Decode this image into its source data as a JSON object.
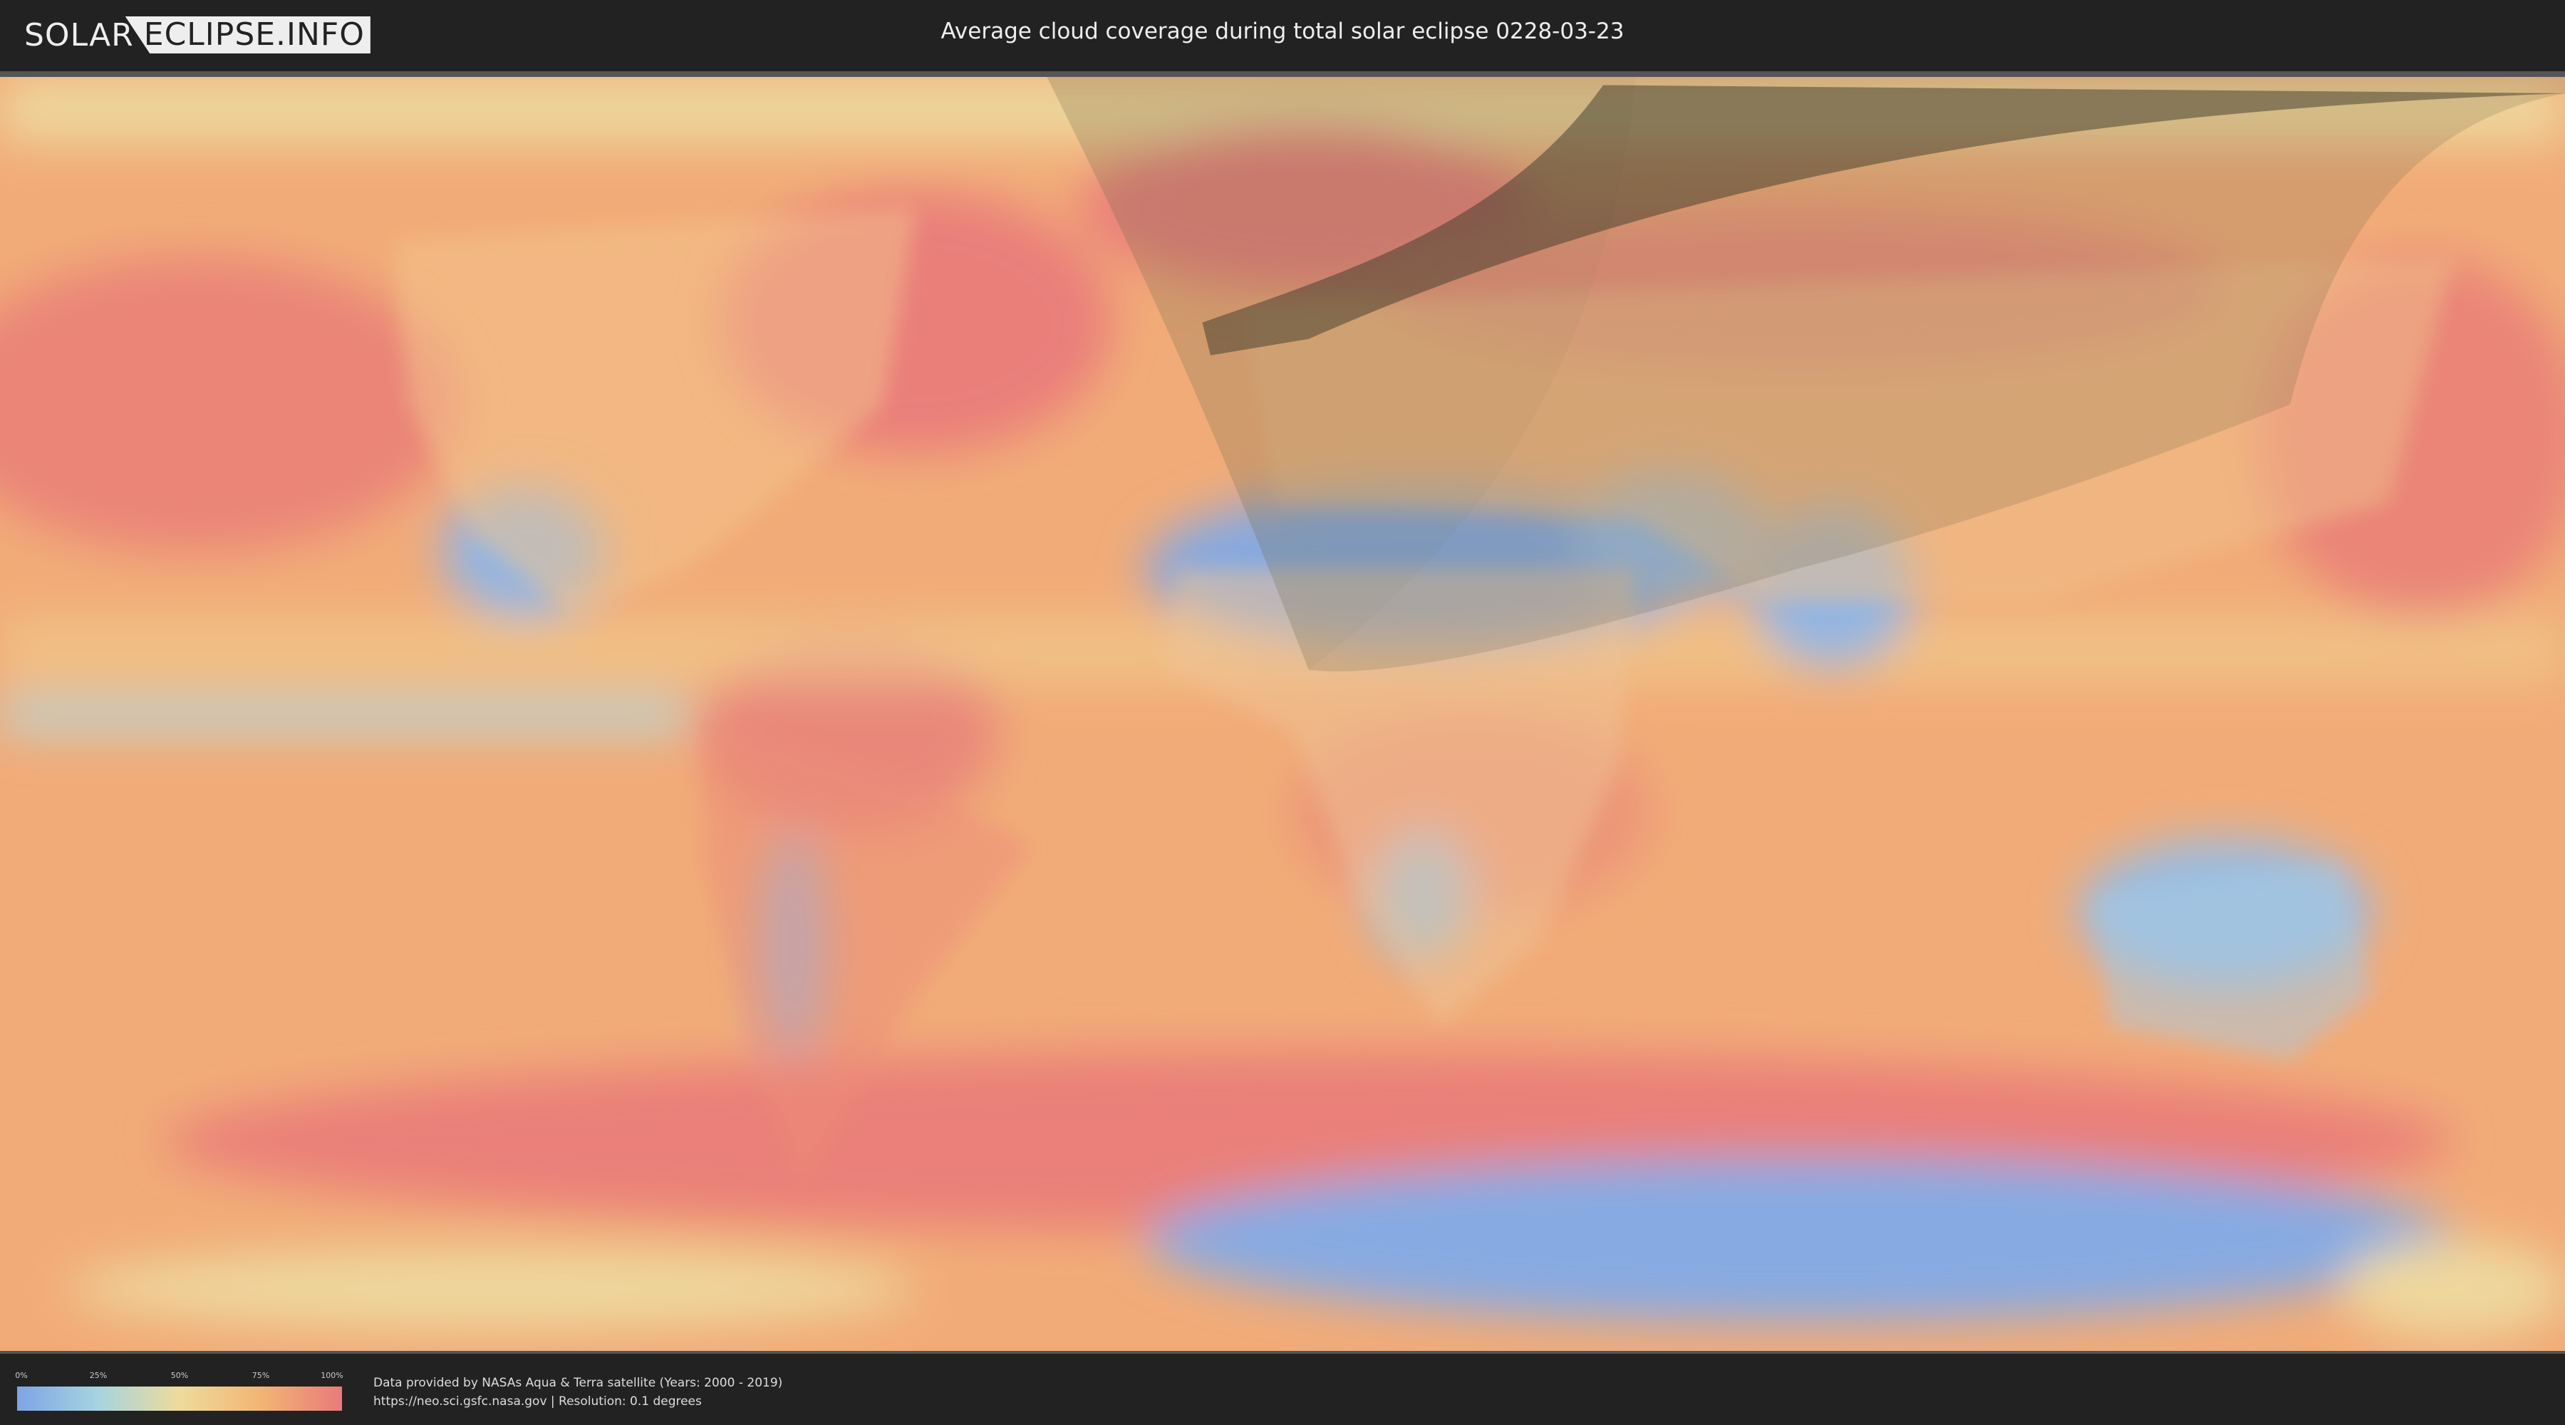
{
  "header": {
    "logo_left": "SOLAR",
    "logo_right": "ECLIPSE.INFO",
    "title": "Average cloud coverage during total solar eclipse 0228-03-23"
  },
  "map": {
    "type": "cloud-coverage world map with eclipse path overlay",
    "eclipse_date": "0228-03-23"
  },
  "legend": {
    "ticks": [
      "0%",
      "25%",
      "50%",
      "75%",
      "100%"
    ],
    "colors": [
      "#7ea4e6",
      "#a6d4e0",
      "#eedb9b",
      "#f2b574",
      "#e97a7a"
    ]
  },
  "footer": {
    "credit_line1": "Data provided by NASAs Aqua & Terra satellite (Years: 2000 - 2019)",
    "credit_line2": "https://neo.sci.gsfc.nasa.gov | Resolution: 0.1 degrees"
  }
}
